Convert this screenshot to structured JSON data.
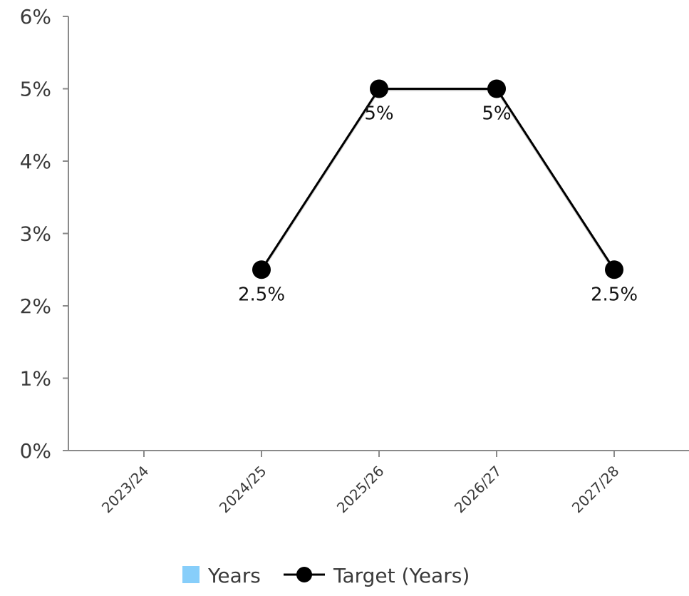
{
  "chart_data": {
    "type": "line",
    "categories": [
      "2023/24",
      "2024/25",
      "2025/26",
      "2026/27",
      "2027/28"
    ],
    "series": [
      {
        "name": "Years",
        "kind": "bar",
        "color": "#87cefa",
        "values": [
          null,
          null,
          null,
          null,
          null
        ]
      },
      {
        "name": "Target (Years)",
        "kind": "line",
        "color": "#000000",
        "values": [
          null,
          0.025,
          0.05,
          0.05,
          0.025
        ],
        "data_labels": [
          "",
          "2.5%",
          "5%",
          "5%",
          "2.5%"
        ]
      }
    ],
    "y_ticks": [
      "0%",
      "1%",
      "2%",
      "3%",
      "4%",
      "5%",
      "6%"
    ],
    "ylim": [
      0,
      0.06
    ],
    "grid": false,
    "legend_position": "bottom",
    "title": "",
    "xlabel": "",
    "ylabel": ""
  }
}
